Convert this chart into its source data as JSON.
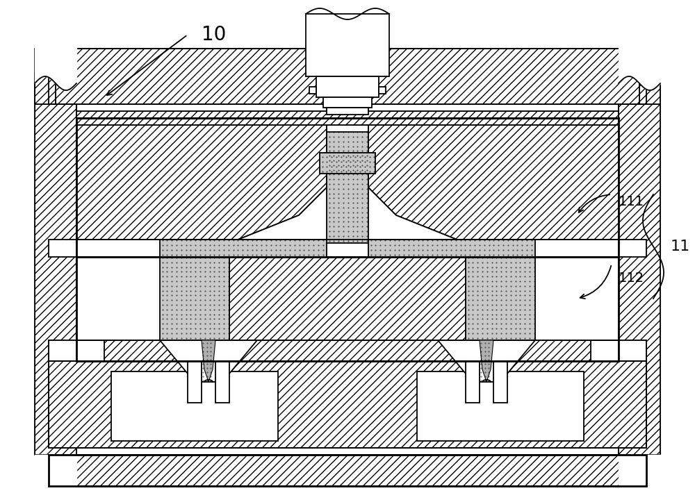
{
  "bg": "#ffffff",
  "lc": "#000000",
  "label_10": "10",
  "label_11": "11",
  "label_111": "111",
  "label_112": "112",
  "fig_width": 10.0,
  "fig_height": 7.1,
  "hatch_45": "///",
  "hatch_neg45": "\\\\",
  "stipple_color": "#aaaaaa"
}
